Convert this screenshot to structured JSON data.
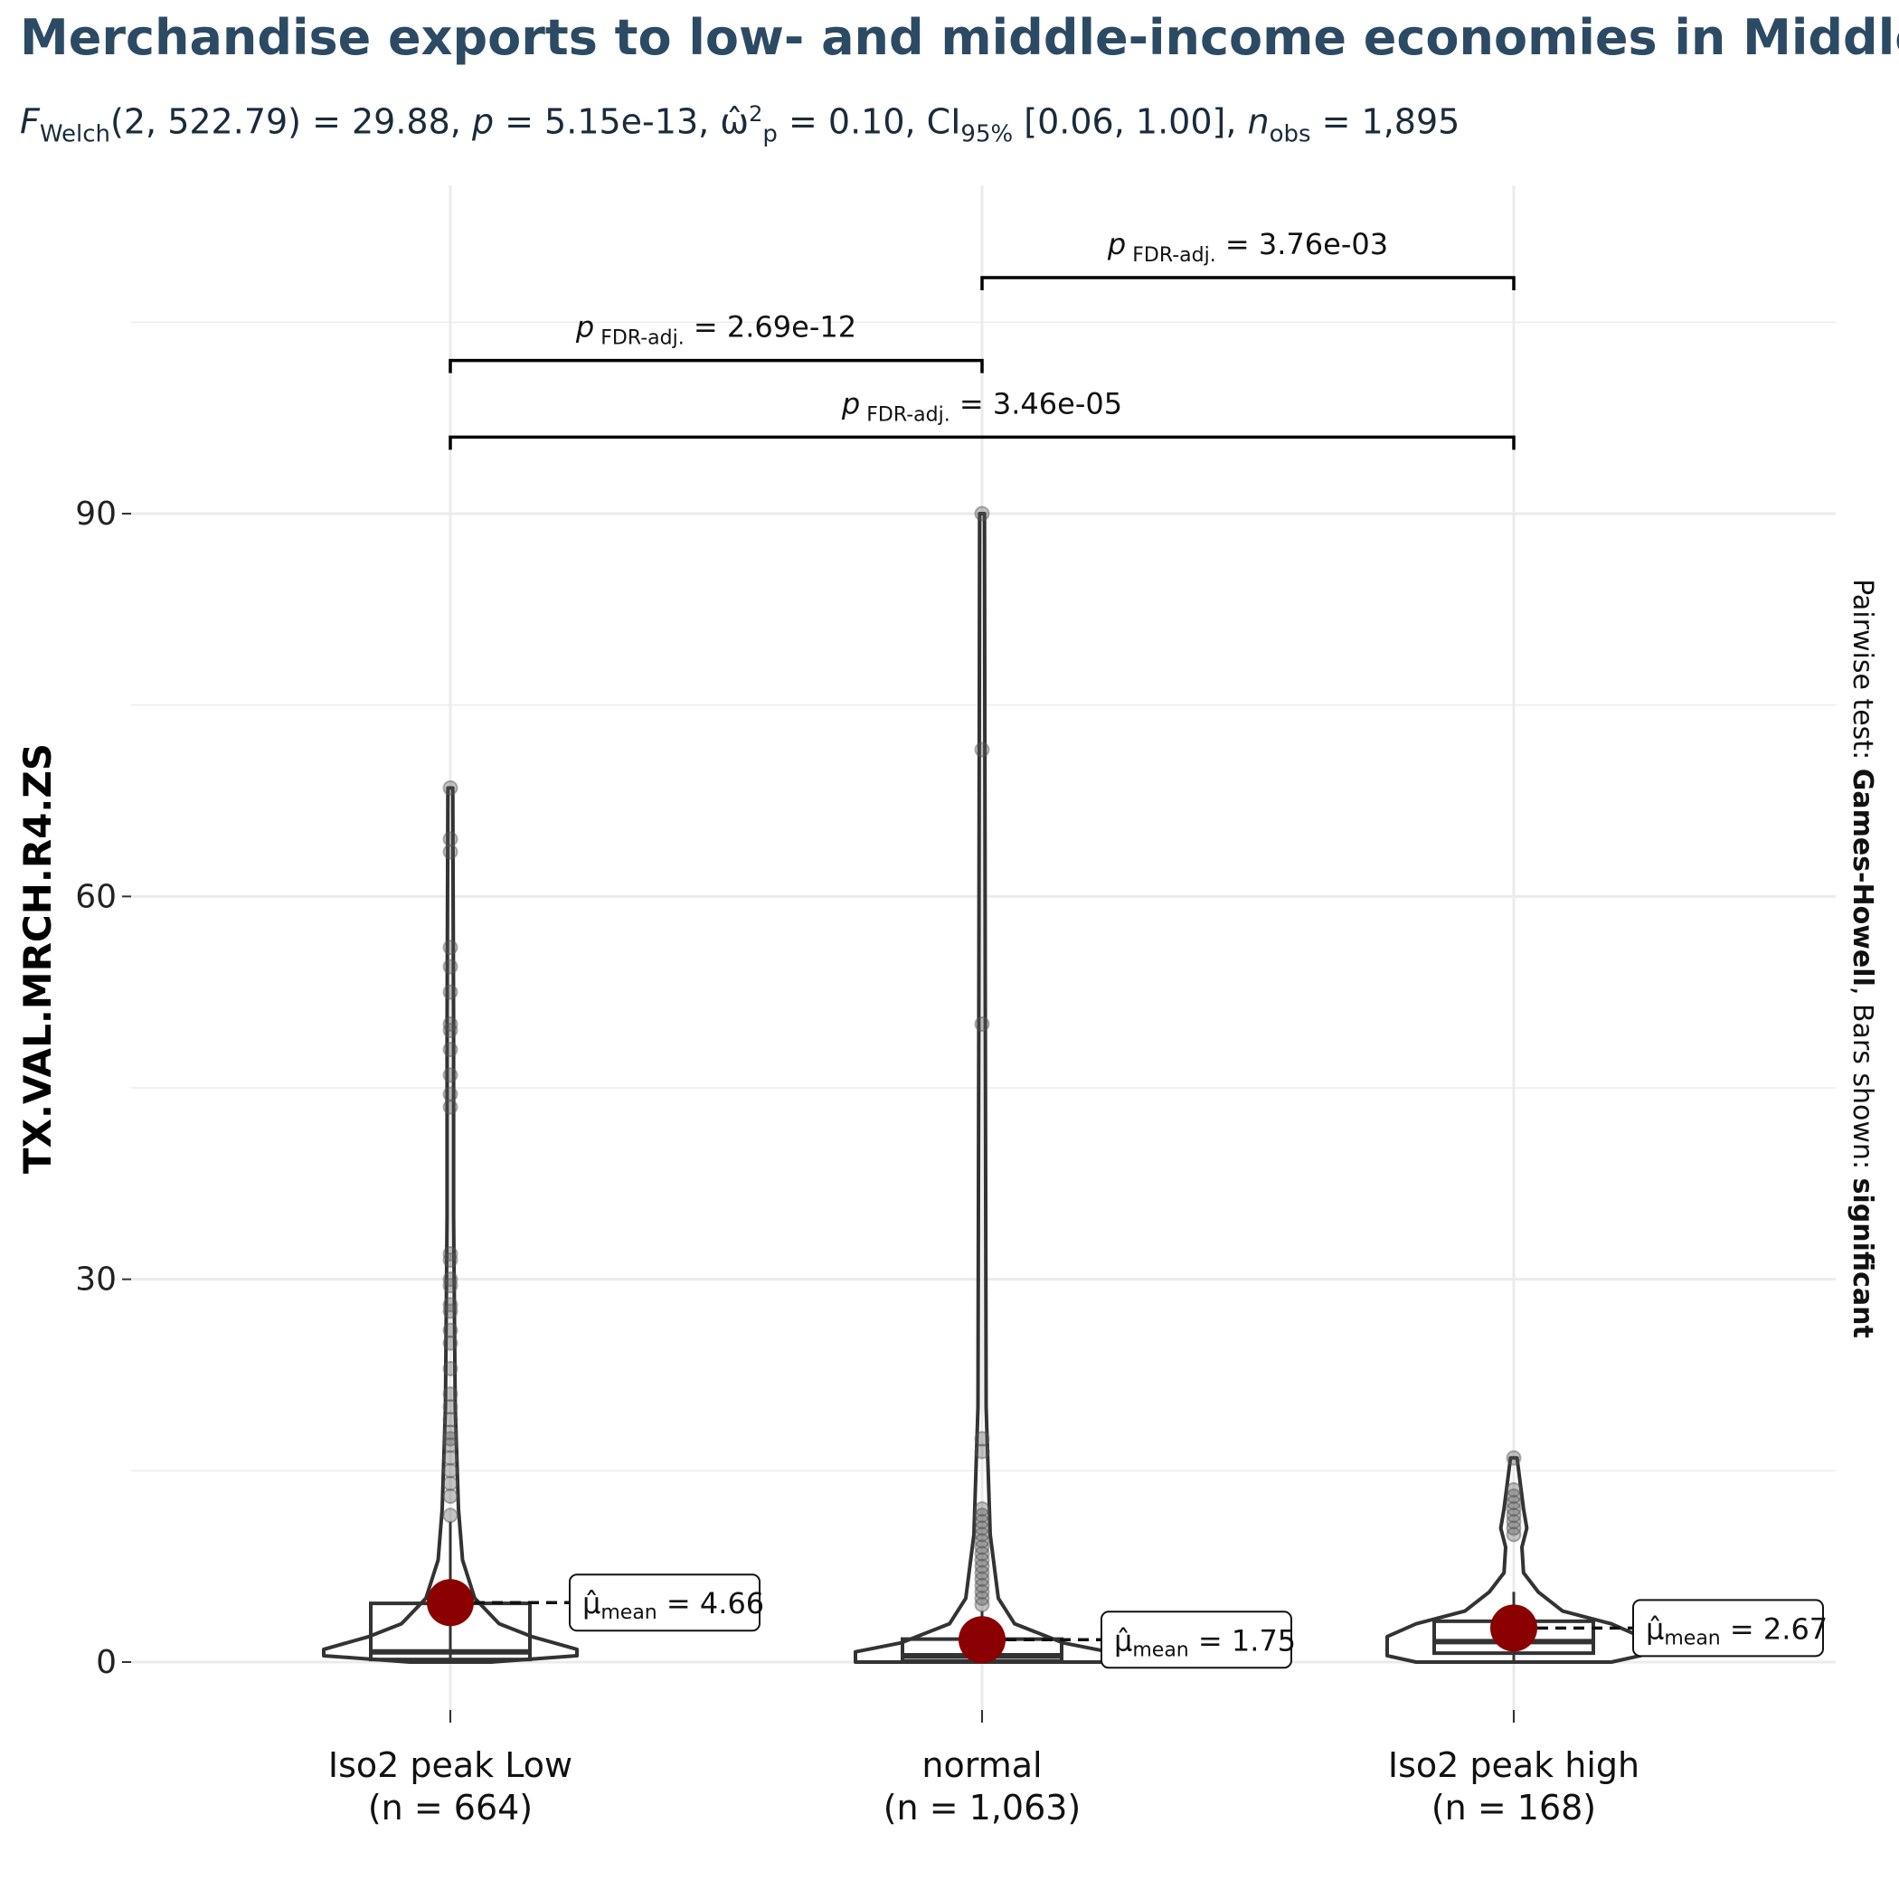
{
  "chart_data": {
    "type": "violin-box",
    "title": "Merchandise exports to low- and middle-income economies in Middle Ea",
    "subtitle": {
      "F": "F",
      "welch": "Welch",
      "args": "(2, 522.79) = 29.88, ",
      "p": "p",
      "p_val": " = 5.15e-13, ",
      "omega": "ω̂",
      "omega_sup": "2",
      "omega_sub": "p",
      "omega_val": " = 0.10, CI",
      "ci_sub": "95%",
      "ci_val": " [0.06, 1.00], ",
      "n": "n",
      "n_sub": "obs",
      "n_val": " = 1,895"
    },
    "ylabel": "TX.VAL.MRCH.R4.ZS",
    "ylim": [
      -6,
      110
    ],
    "yticks": [
      0,
      30,
      60,
      90
    ],
    "caption": {
      "prefix": "Pairwise test: ",
      "test": "Games-Howell",
      "mid": ", Bars shown: ",
      "shown": "significant"
    },
    "categories": [
      {
        "name": "Iso2 peak  Low",
        "n_label": "(n = 664)",
        "mean": 4.66,
        "mean_label": "4.66",
        "box": {
          "q1": 0.2,
          "median": 0.8,
          "q3": 4.6,
          "whisker_low": 0,
          "whisker_high": 11
        },
        "violin": {
          "max": 68.5,
          "ys": [
            0,
            0.5,
            1,
            2,
            3,
            5,
            8,
            12,
            20,
            35,
            50,
            68.5
          ],
          "widths": [
            0.05,
            0.34,
            0.22,
            0.1,
            0.06,
            0.03,
            0.015,
            0.01,
            0.006,
            0.004,
            0.004,
            0.003
          ]
        },
        "outliers": [
          11.5,
          13,
          14,
          15,
          16,
          17,
          17.5,
          18,
          19,
          20,
          21,
          23,
          25,
          26,
          27.5,
          28,
          29.5,
          30,
          31.5,
          32,
          43.5,
          44.5,
          46,
          48,
          49.5,
          50,
          52.5,
          54.5,
          56,
          63.5,
          64.5,
          68.5
        ]
      },
      {
        "name": "normal",
        "n_label": "(n = 1,063)",
        "mean": 1.75,
        "mean_label": "1.75",
        "box": {
          "q1": 0.1,
          "median": 0.5,
          "q3": 1.8,
          "whisker_low": 0,
          "whisker_high": 4
        },
        "violin": {
          "max": 90,
          "ys": [
            0,
            0.3,
            0.8,
            1.5,
            3,
            5,
            10,
            20,
            50,
            90
          ],
          "widths": [
            0.22,
            0.44,
            0.24,
            0.1,
            0.04,
            0.02,
            0.01,
            0.005,
            0.004,
            0.003
          ]
        },
        "outliers": [
          4.5,
          5,
          5.5,
          6,
          6.5,
          7,
          7.5,
          8,
          8.5,
          9,
          9.5,
          10,
          10.5,
          11,
          11.5,
          12,
          16.5,
          17.5,
          50,
          71.5,
          90
        ]
      },
      {
        "name": "Iso2 peak  high",
        "n_label": "(n = 168)",
        "mean": 2.67,
        "mean_label": "2.67",
        "box": {
          "q1": 0.7,
          "median": 1.6,
          "q3": 3.2,
          "whisker_low": 0,
          "whisker_high": 5.5
        },
        "violin": {
          "max": 16,
          "ys": [
            0,
            0.5,
            1,
            2,
            3,
            4,
            5.5,
            7,
            9,
            10.5,
            12,
            14,
            16
          ],
          "widths": [
            0.12,
            0.22,
            0.3,
            0.22,
            0.12,
            0.06,
            0.03,
            0.012,
            0.01,
            0.016,
            0.012,
            0.008,
            0.004
          ]
        },
        "outliers": [
          10,
          10.5,
          11,
          11.5,
          12,
          12.5,
          13,
          13.5,
          16
        ]
      }
    ],
    "comparisons": [
      {
        "from": 1,
        "to": 2,
        "y": 108.5,
        "p_label": "3.76e-03"
      },
      {
        "from": 0,
        "to": 1,
        "y": 102,
        "p_label": "2.69e-12"
      },
      {
        "from": 0,
        "to": 2,
        "y": 96,
        "p_label": "3.46e-05"
      }
    ],
    "annotation_labels": {
      "p": "p",
      "fdr": "FDR-adj.",
      "mu": "μ̂",
      "mean_sub": "mean"
    },
    "colors": {
      "mean_point": "#8b0000",
      "grid": "#ebebeb",
      "lines": "#333333",
      "outlier": "#555555",
      "title": "#2c4a63"
    }
  }
}
